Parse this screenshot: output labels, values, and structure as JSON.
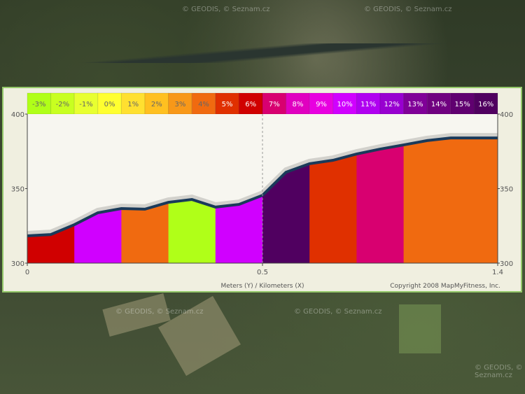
{
  "map": {
    "watermark": "© GEODIS, © Seznam.cz"
  },
  "chart_data": {
    "type": "area",
    "grade_legend": [
      "-3%",
      "-2%",
      "-1%",
      "0%",
      "1%",
      "2%",
      "3%",
      "4%",
      "5%",
      "6%",
      "7%",
      "8%",
      "9%",
      "10%",
      "11%",
      "12%",
      "13%",
      "14%",
      "15%",
      "16%"
    ],
    "grade_colors": [
      "#b0ff18",
      "#c8ff20",
      "#e8ff30",
      "#ffff30",
      "#ffe030",
      "#ffc020",
      "#f89818",
      "#f06a10",
      "#e03000",
      "#d00000",
      "#d80070",
      "#e000c0",
      "#e800e0",
      "#d000ff",
      "#b000f0",
      "#9800d0",
      "#800098",
      "#700080",
      "#600070",
      "#500060"
    ],
    "segment_grades": [
      "6%",
      "10%",
      "4%",
      "-3%",
      "10%",
      "16%",
      "5%",
      "7%",
      "4%",
      "4%"
    ],
    "elevation": [
      318.3,
      319.2,
      325.8,
      333.8,
      336.6,
      336.2,
      340.8,
      342.7,
      337.6,
      339.4,
      345.5,
      361,
      366.7,
      369,
      373.2,
      376.5,
      379.3,
      382.2,
      384,
      384,
      384
    ],
    "ylim": [
      300,
      400
    ],
    "yticks": [
      "300",
      "350",
      "400"
    ],
    "xticks": [
      "0",
      "0.5",
      "1.4"
    ],
    "xlabel": "Meters (Y) / Kilometers (X)",
    "copyright": "Copyright 2008 MapMyFitness, Inc."
  }
}
